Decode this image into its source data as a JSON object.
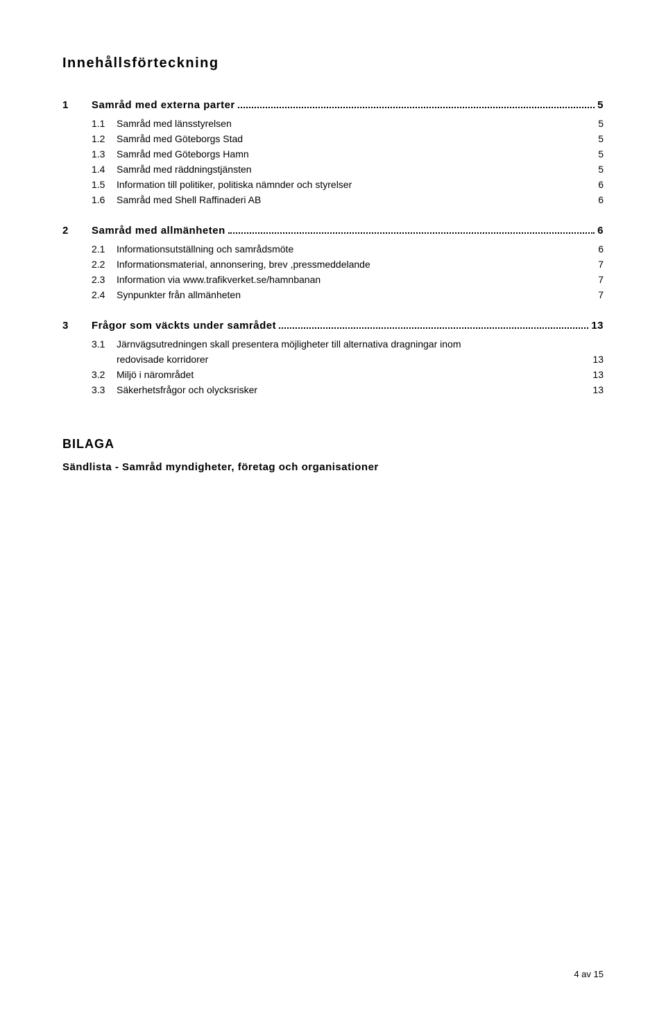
{
  "title": "Innehållsförteckning",
  "sections": [
    {
      "num": "1",
      "label": "Samråd med externa parter",
      "page": "5",
      "items": [
        {
          "num": "1.1",
          "label": "Samråd med länsstyrelsen",
          "page": "5"
        },
        {
          "num": "1.2",
          "label": "Samråd med Göteborgs Stad",
          "page": "5"
        },
        {
          "num": "1.3",
          "label": "Samråd med Göteborgs Hamn",
          "page": "5"
        },
        {
          "num": "1.4",
          "label": "Samråd med räddningstjänsten",
          "page": "5"
        },
        {
          "num": "1.5",
          "label": "Information till politiker, politiska nämnder och styrelser",
          "page": "6"
        },
        {
          "num": "1.6",
          "label": "Samråd med Shell Raffinaderi AB",
          "page": "6"
        }
      ]
    },
    {
      "num": "2",
      "label": "Samråd med allmänheten",
      "page": "6",
      "items": [
        {
          "num": "2.1",
          "label": "Informationsutställning och samrådsmöte",
          "page": "6"
        },
        {
          "num": "2.2",
          "label": "Informationsmaterial, annonsering, brev ,pressmeddelande",
          "page": "7"
        },
        {
          "num": "2.3",
          "label": "Information via www.trafikverket.se/hamnbanan",
          "page": "7"
        },
        {
          "num": "2.4",
          "label": "Synpunkter från allmänheten",
          "page": "7"
        }
      ]
    },
    {
      "num": "3",
      "label": "Frågor som väckts under samrådet",
      "page": "13",
      "items": [
        {
          "num": "3.1",
          "label": "Järnvägsutredningen skall presentera möjligheter till alternativa dragningar inom",
          "page": "",
          "continuation_label": "redovisade korridorer",
          "continuation_page": "13"
        },
        {
          "num": "3.2",
          "label": "Miljö i närområdet",
          "page": "13"
        },
        {
          "num": "3.3",
          "label": "Säkerhetsfrågor och olycksrisker",
          "page": "13"
        }
      ]
    }
  ],
  "appendix": {
    "heading": "BILAGA",
    "sub": "Sändlista - Samråd myndigheter, företag och organisationer"
  },
  "footer": "4 av 15"
}
